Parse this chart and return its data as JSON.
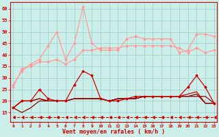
{
  "x": [
    0,
    1,
    2,
    3,
    4,
    5,
    6,
    7,
    8,
    9,
    10,
    11,
    12,
    13,
    14,
    15,
    16,
    17,
    18,
    19,
    20,
    21,
    22,
    23
  ],
  "line_pink1": [
    27,
    33,
    36,
    38,
    44,
    50,
    38,
    45,
    61,
    45,
    42,
    42,
    42,
    47,
    48,
    47,
    47,
    47,
    47,
    41,
    42,
    49,
    49,
    48
  ],
  "line_pink2": [
    26,
    34,
    35,
    37,
    37,
    38,
    36,
    38,
    42,
    42,
    43,
    43,
    43,
    44,
    44,
    44,
    44,
    44,
    44,
    43,
    41,
    43,
    41,
    42
  ],
  "line_red_dark1": [
    17,
    15,
    17,
    20,
    20,
    20,
    20,
    21,
    21,
    21,
    21,
    20,
    21,
    21,
    21,
    22,
    22,
    22,
    22,
    22,
    22,
    22,
    22,
    19
  ],
  "line_red1": [
    17,
    20,
    20,
    25,
    21,
    20,
    20,
    27,
    33,
    31,
    21,
    20,
    20,
    21,
    22,
    22,
    22,
    22,
    22,
    22,
    26,
    31,
    26,
    19
  ],
  "line_red2": [
    17,
    20,
    20,
    21,
    20,
    20,
    20,
    21,
    21,
    21,
    21,
    20,
    21,
    21,
    21,
    22,
    22,
    22,
    22,
    22,
    23,
    24,
    19,
    19
  ],
  "line_red3": [
    17,
    20,
    20,
    21,
    20,
    20,
    20,
    21,
    21,
    21,
    21,
    20,
    21,
    21,
    21,
    22,
    22,
    22,
    22,
    22,
    22,
    23,
    19,
    19
  ],
  "line_dashed": [
    13,
    13,
    13,
    13,
    13,
    13,
    13,
    13,
    13,
    13,
    13,
    13,
    13,
    13,
    13,
    13,
    13,
    13,
    13,
    13,
    13,
    13,
    13,
    13
  ],
  "bg_color": "#cceee8",
  "grid_color": "#99cccc",
  "color_pink": "#ff9999",
  "color_red": "#cc0000",
  "color_darkred": "#880000",
  "color_dashed": "#cc0000",
  "xlabel": "Vent moyen/en rafales ( km/h )",
  "ylim": [
    11,
    63
  ],
  "yticks": [
    15,
    20,
    25,
    30,
    35,
    40,
    45,
    50,
    55,
    60
  ],
  "xticks": [
    0,
    1,
    2,
    3,
    4,
    5,
    6,
    7,
    8,
    9,
    10,
    11,
    12,
    13,
    14,
    15,
    16,
    17,
    18,
    19,
    20,
    21,
    22,
    23
  ]
}
